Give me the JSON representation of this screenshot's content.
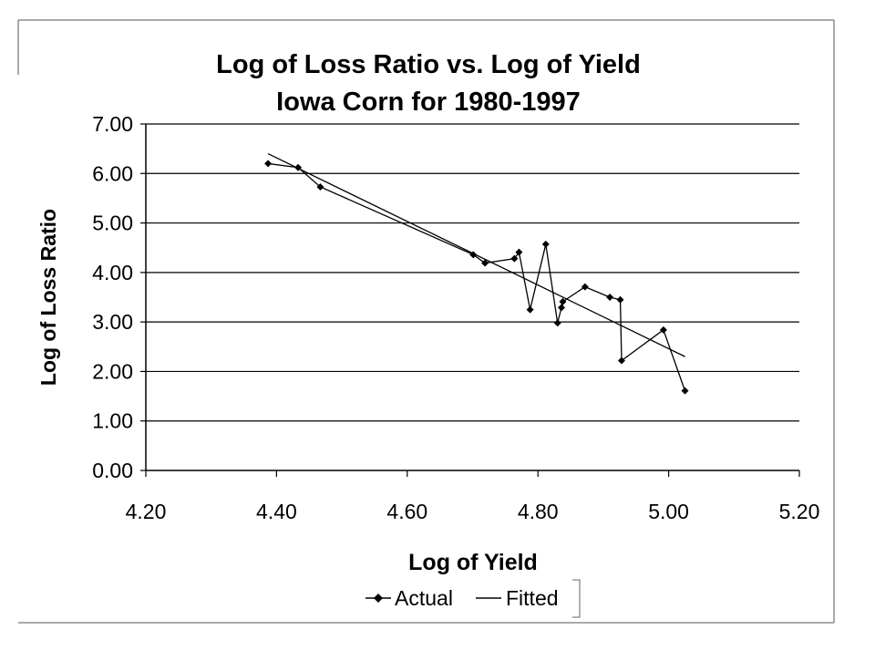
{
  "chart_data": {
    "type": "line",
    "title": "Log of Loss Ratio vs. Log of Yield",
    "subtitle": "Iowa Corn for 1980-1997",
    "xlabel": "Log of Yield",
    "ylabel": "Log of Loss Ratio",
    "xlim": [
      4.2,
      5.2
    ],
    "ylim": [
      0,
      7
    ],
    "x_ticks": [
      4.2,
      4.4,
      4.6,
      4.8,
      5.0,
      5.2
    ],
    "x_tick_labels": [
      "4.20",
      "4.40",
      "4.60",
      "4.80",
      "5.00",
      "5.20"
    ],
    "y_ticks": [
      0,
      1,
      2,
      3,
      4,
      5,
      6,
      7
    ],
    "y_tick_labels": [
      "0.00",
      "1.00",
      "2.00",
      "3.00",
      "4.00",
      "5.00",
      "6.00",
      "7.00"
    ],
    "grid": "horizontal",
    "legend_position": "bottom",
    "series": [
      {
        "name": "Actual",
        "marker": "diamond",
        "color": "#000000",
        "x": [
          4.387,
          4.433,
          4.467,
          4.701,
          4.719,
          4.764,
          4.771,
          4.788,
          4.812,
          4.83,
          4.836,
          4.838,
          4.872,
          4.91,
          4.926,
          4.928,
          4.992,
          5.025
        ],
        "y": [
          6.2,
          6.12,
          5.73,
          4.36,
          4.19,
          4.28,
          4.41,
          3.25,
          4.57,
          2.98,
          3.29,
          3.41,
          3.71,
          3.5,
          3.45,
          2.22,
          2.84,
          1.61
        ]
      },
      {
        "name": "Fitted",
        "marker": "none",
        "color": "#000000",
        "x": [
          4.387,
          5.025
        ],
        "y": [
          6.4,
          2.3
        ]
      }
    ]
  }
}
